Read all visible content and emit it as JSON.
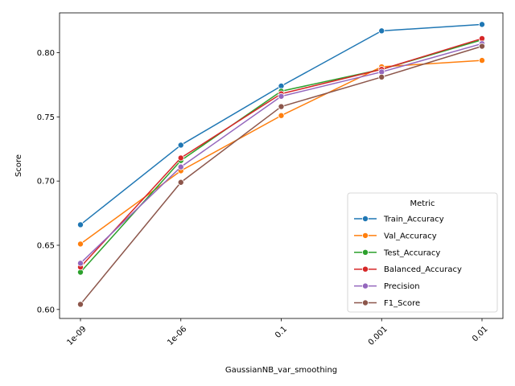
{
  "chart_data": {
    "type": "line",
    "title": "",
    "xlabel": "GaussianNB_var_smoothing",
    "ylabel": "Score",
    "categories": [
      "1e-09",
      "1e-06",
      "0.1",
      "0.001",
      "0.01"
    ],
    "ylim": [
      0.593,
      0.831
    ],
    "yticks": [
      "0.60",
      "0.65",
      "0.70",
      "0.75",
      "0.80"
    ],
    "ytick_values": [
      0.6,
      0.65,
      0.7,
      0.75,
      0.8
    ],
    "grid": false,
    "legend": {
      "title": "Metric",
      "placement": "lower-right"
    },
    "series": [
      {
        "name": "Train_Accuracy",
        "color": "#1f77b4",
        "values": [
          0.666,
          0.728,
          0.774,
          0.817,
          0.822
        ]
      },
      {
        "name": "Val_Accuracy",
        "color": "#ff7f0e",
        "values": [
          0.651,
          0.708,
          0.751,
          0.789,
          0.794
        ]
      },
      {
        "name": "Test_Accuracy",
        "color": "#2ca02c",
        "values": [
          0.629,
          0.716,
          0.77,
          0.787,
          0.81
        ]
      },
      {
        "name": "Balanced_Accuracy",
        "color": "#d62728",
        "values": [
          0.633,
          0.718,
          0.768,
          0.787,
          0.811
        ]
      },
      {
        "name": "Precision",
        "color": "#9467bd",
        "values": [
          0.636,
          0.711,
          0.766,
          0.785,
          0.807
        ]
      },
      {
        "name": "F1_Score",
        "color": "#8c564b",
        "values": [
          0.604,
          0.699,
          0.758,
          0.781,
          0.805
        ]
      }
    ]
  }
}
